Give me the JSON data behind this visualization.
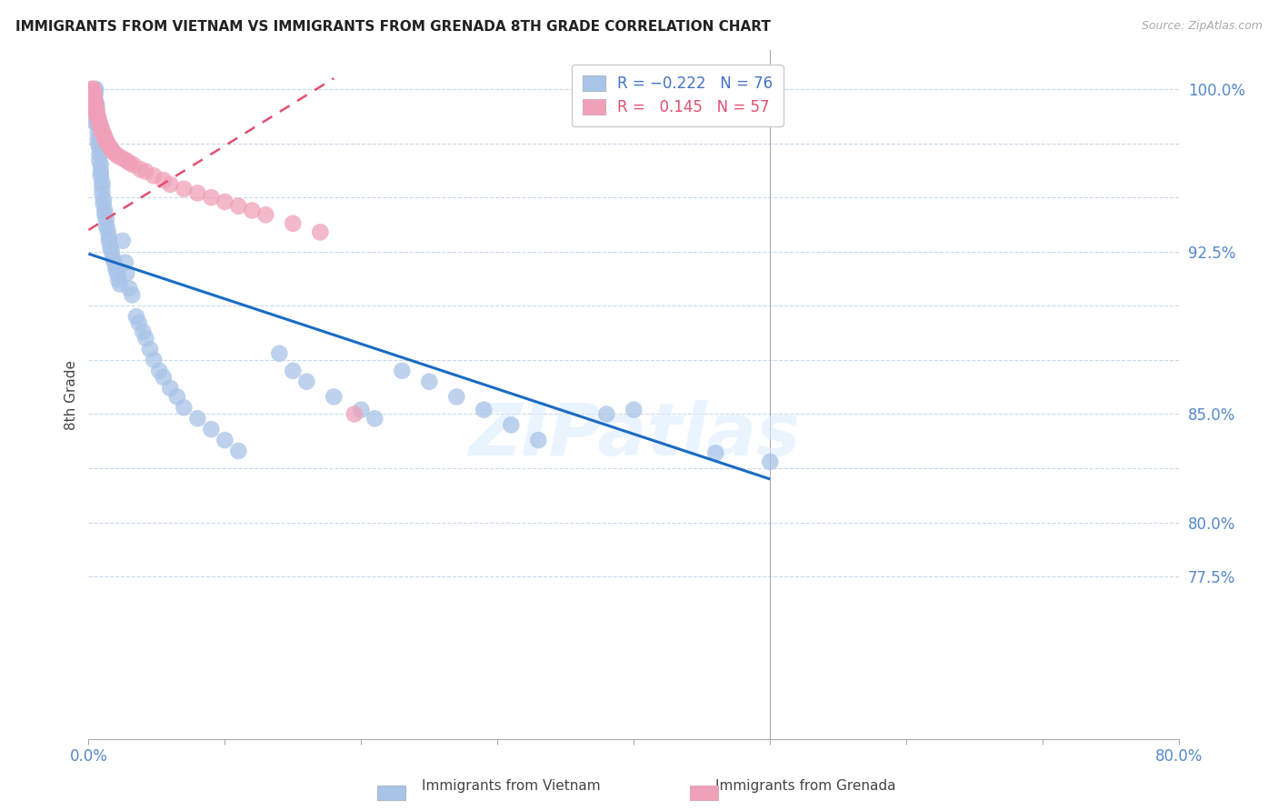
{
  "title": "IMMIGRANTS FROM VIETNAM VS IMMIGRANTS FROM GRENADA 8TH GRADE CORRELATION CHART",
  "source": "Source: ZipAtlas.com",
  "ylabel": "8th Grade",
  "xlim": [
    0.0,
    0.8
  ],
  "ylim": [
    0.7,
    1.018
  ],
  "color_vietnam": "#a8c4e8",
  "color_grenada": "#f0a0b8",
  "color_line_vietnam": "#1a6bc4",
  "color_line_grenada": "#e05070",
  "background_color": "#ffffff",
  "watermark_text": "ZIPatlas",
  "viet_trend_x0": 0.0,
  "viet_trend_y0": 0.924,
  "viet_trend_x1": 0.5,
  "viet_trend_y1": 0.82,
  "gren_trend_x0": 0.0,
  "gren_trend_y0": 0.935,
  "gren_trend_x1": 0.18,
  "gren_trend_y1": 1.005,
  "ytick_positions": [
    0.775,
    0.8,
    0.825,
    0.85,
    0.875,
    0.9,
    0.925,
    0.95,
    0.975,
    1.0
  ],
  "ytick_labels": [
    "77.5%",
    "80.0%",
    "",
    "85.0%",
    "",
    "",
    "92.5%",
    "",
    "",
    "100.0%"
  ],
  "xtick_positions": [
    0.0,
    0.1,
    0.2,
    0.3,
    0.4,
    0.5,
    0.6,
    0.7,
    0.8
  ],
  "xtick_labels": [
    "0.0%",
    "",
    "",
    "",
    "",
    "",
    "",
    "",
    "80.0%"
  ],
  "grid_y_positions": [
    0.775,
    0.8,
    0.825,
    0.85,
    0.875,
    0.9,
    0.925,
    0.95,
    0.975,
    1.0
  ],
  "vietnam_x": [
    0.004,
    0.004,
    0.005,
    0.005,
    0.005,
    0.005,
    0.006,
    0.006,
    0.006,
    0.006,
    0.007,
    0.007,
    0.007,
    0.007,
    0.008,
    0.008,
    0.008,
    0.009,
    0.009,
    0.009,
    0.01,
    0.01,
    0.01,
    0.011,
    0.011,
    0.012,
    0.012,
    0.013,
    0.013,
    0.014,
    0.015,
    0.015,
    0.016,
    0.017,
    0.018,
    0.019,
    0.02,
    0.021,
    0.022,
    0.023,
    0.025,
    0.027,
    0.028,
    0.03,
    0.032,
    0.035,
    0.037,
    0.04,
    0.042,
    0.045,
    0.048,
    0.052,
    0.055,
    0.06,
    0.065,
    0.07,
    0.08,
    0.09,
    0.1,
    0.11,
    0.14,
    0.15,
    0.16,
    0.18,
    0.2,
    0.21,
    0.23,
    0.25,
    0.27,
    0.29,
    0.31,
    0.33,
    0.38,
    0.4,
    0.46,
    0.5
  ],
  "vietnam_y": [
    0.985,
    0.997,
    1.0,
    1.0,
    0.998,
    0.995,
    0.993,
    0.991,
    0.988,
    0.985,
    0.983,
    0.98,
    0.977,
    0.975,
    0.973,
    0.97,
    0.967,
    0.965,
    0.962,
    0.96,
    0.957,
    0.955,
    0.952,
    0.949,
    0.947,
    0.944,
    0.942,
    0.94,
    0.937,
    0.935,
    0.932,
    0.93,
    0.927,
    0.925,
    0.922,
    0.92,
    0.917,
    0.915,
    0.912,
    0.91,
    0.93,
    0.92,
    0.915,
    0.908,
    0.905,
    0.895,
    0.892,
    0.888,
    0.885,
    0.88,
    0.875,
    0.87,
    0.867,
    0.862,
    0.858,
    0.853,
    0.848,
    0.843,
    0.838,
    0.833,
    0.878,
    0.87,
    0.865,
    0.858,
    0.852,
    0.848,
    0.87,
    0.865,
    0.858,
    0.852,
    0.845,
    0.838,
    0.85,
    0.852,
    0.832,
    0.828
  ],
  "grenada_x": [
    0.003,
    0.003,
    0.003,
    0.004,
    0.004,
    0.004,
    0.004,
    0.004,
    0.005,
    0.005,
    0.005,
    0.005,
    0.006,
    0.006,
    0.006,
    0.006,
    0.007,
    0.007,
    0.007,
    0.008,
    0.008,
    0.008,
    0.009,
    0.009,
    0.01,
    0.01,
    0.011,
    0.011,
    0.012,
    0.012,
    0.013,
    0.014,
    0.015,
    0.016,
    0.017,
    0.018,
    0.02,
    0.022,
    0.025,
    0.028,
    0.03,
    0.033,
    0.038,
    0.042,
    0.048,
    0.055,
    0.06,
    0.07,
    0.08,
    0.09,
    0.1,
    0.11,
    0.12,
    0.13,
    0.15,
    0.17,
    0.195
  ],
  "grenada_y": [
    1.0,
    1.0,
    1.0,
    0.998,
    0.997,
    0.996,
    0.995,
    0.994,
    0.993,
    0.993,
    0.992,
    0.991,
    0.99,
    0.99,
    0.989,
    0.988,
    0.987,
    0.987,
    0.986,
    0.985,
    0.984,
    0.984,
    0.983,
    0.982,
    0.981,
    0.98,
    0.979,
    0.979,
    0.978,
    0.977,
    0.976,
    0.975,
    0.974,
    0.973,
    0.972,
    0.971,
    0.97,
    0.969,
    0.968,
    0.967,
    0.966,
    0.965,
    0.963,
    0.962,
    0.96,
    0.958,
    0.956,
    0.954,
    0.952,
    0.95,
    0.948,
    0.946,
    0.944,
    0.942,
    0.938,
    0.934,
    0.85
  ]
}
